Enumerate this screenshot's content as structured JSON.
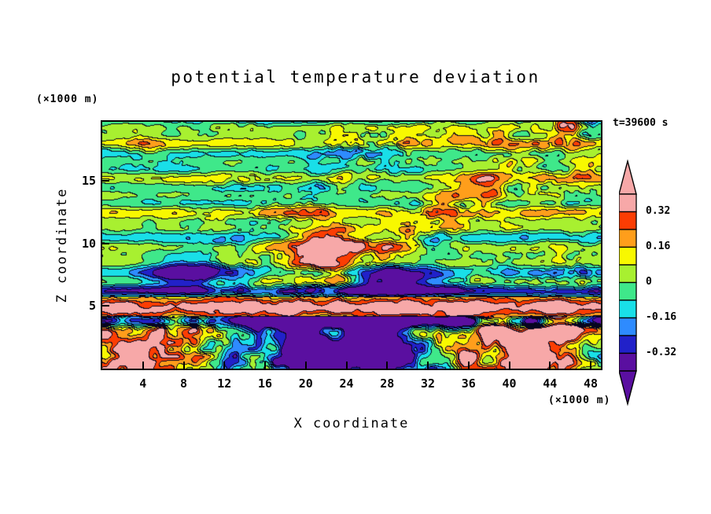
{
  "title": "potential temperature deviation",
  "annotations": {
    "z_units": "(×1000 m)",
    "x_units": "(×1000 m)",
    "time": "t=39600 s"
  },
  "axes": {
    "x": {
      "label": "X coordinate",
      "ticks": [
        4,
        8,
        12,
        16,
        20,
        24,
        28,
        32,
        36,
        40,
        44,
        48
      ]
    },
    "z": {
      "label": "Z coordinate",
      "ticks": [
        5,
        10,
        15
      ]
    }
  },
  "colorbar": {
    "labels": [
      "0.32",
      "0.16",
      "0",
      "-0.16",
      "-0.32"
    ]
  },
  "chart_data": {
    "type": "heatmap",
    "title": "potential temperature deviation",
    "xlabel": "X coordinate (×1000 m)",
    "ylabel": "Z coordinate (×1000 m)",
    "time_annotation": "t=39600 s",
    "x_range": [
      0,
      50
    ],
    "z_range": [
      0,
      20
    ],
    "x_ticks": [
      4,
      8,
      12,
      16,
      20,
      24,
      28,
      32,
      36,
      40,
      44,
      48
    ],
    "z_ticks": [
      5,
      10,
      15
    ],
    "contour_interval": 0.08,
    "levels": [
      -0.32,
      -0.24,
      -0.16,
      -0.08,
      0,
      0.08,
      0.16,
      0.24,
      0.32
    ],
    "colorbar_tick_labels": [
      "0.32",
      "0.16",
      "0",
      "-0.16",
      "-0.32"
    ],
    "legend_position": "right",
    "palette": [
      {
        "name": "purple",
        "range": "< -0.32",
        "color": "#5A0FA0"
      },
      {
        "name": "navy",
        "range": "-0.32 to -0.24",
        "color": "#2121C9"
      },
      {
        "name": "blue",
        "range": "-0.24 to -0.16",
        "color": "#2E8BFF"
      },
      {
        "name": "cyan",
        "range": "-0.16 to -0.08",
        "color": "#19DFE8"
      },
      {
        "name": "spring-green",
        "range": "-0.08 to 0",
        "color": "#3FE88A"
      },
      {
        "name": "green-yellow",
        "range": "0 to 0.08",
        "color": "#A8F030"
      },
      {
        "name": "yellow",
        "range": "0.08 to 0.16",
        "color": "#F8F800"
      },
      {
        "name": "orange",
        "range": "0.16 to 0.24",
        "color": "#FF9E1B"
      },
      {
        "name": "red",
        "range": "0.24 to 0.32",
        "color": "#FB3D03"
      },
      {
        "name": "pink",
        "range": "> 0.32",
        "color": "#F7A8A8"
      }
    ],
    "field_summary": "Turbulent 2-D filled-contour field: stratified wave bands aloft (green/cyan/yellow stripes with warm and cold patches), a warm pink layer near z=5, a dark cold band just below it, and convective warm/cold cells near the surface."
  }
}
